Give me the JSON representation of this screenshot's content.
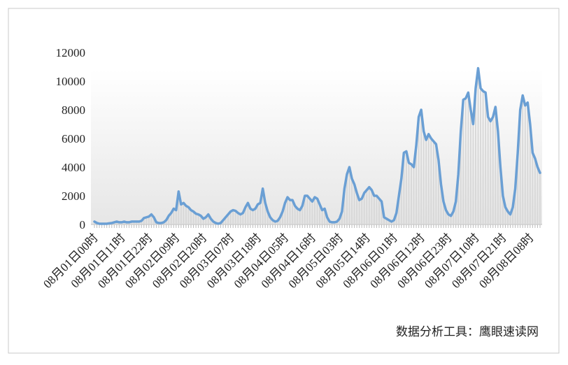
{
  "chart_data": {
    "type": "line",
    "categories": [
      "08月01日00时",
      null,
      null,
      null,
      null,
      null,
      null,
      null,
      null,
      null,
      null,
      "08月01日11时",
      null,
      null,
      null,
      null,
      null,
      null,
      null,
      null,
      null,
      null,
      "08月01日22时",
      null,
      null,
      null,
      null,
      null,
      null,
      null,
      null,
      null,
      null,
      "08月02日09时",
      null,
      null,
      null,
      null,
      null,
      null,
      null,
      null,
      null,
      null,
      "08月02日20时",
      null,
      null,
      null,
      null,
      null,
      null,
      null,
      null,
      null,
      null,
      "08月03日07时",
      null,
      null,
      null,
      null,
      null,
      null,
      null,
      null,
      null,
      null,
      "08月03日18时",
      null,
      null,
      null,
      null,
      null,
      null,
      null,
      null,
      null,
      null,
      "08月04日05时",
      null,
      null,
      null,
      null,
      null,
      null,
      null,
      null,
      null,
      null,
      "08月04日16时",
      null,
      null,
      null,
      null,
      null,
      null,
      null,
      null,
      null,
      null,
      "08月05日03时",
      null,
      null,
      null,
      null,
      null,
      null,
      null,
      null,
      null,
      null,
      "08月05日14时",
      null,
      null,
      null,
      null,
      null,
      null,
      null,
      null,
      null,
      null,
      "08月06日01时",
      null,
      null,
      null,
      null,
      null,
      null,
      null,
      null,
      null,
      null,
      "08月06日12时",
      null,
      null,
      null,
      null,
      null,
      null,
      null,
      null,
      null,
      null,
      "08月06日23时",
      null,
      null,
      null,
      null,
      null,
      null,
      null,
      null,
      null,
      null,
      "08月07日10时",
      null,
      null,
      null,
      null,
      null,
      null,
      null,
      null,
      null,
      null,
      "08月07日21时",
      null,
      null,
      null,
      null,
      null,
      null,
      null,
      null,
      null,
      null,
      "08月08日08时",
      null,
      null,
      null,
      null
    ],
    "series": [
      {
        "color": "#6a9fd4",
        "values": [
          200,
          100,
          50,
          50,
          50,
          50,
          80,
          100,
          150,
          200,
          150,
          150,
          200,
          150,
          150,
          200,
          200,
          200,
          200,
          250,
          450,
          500,
          550,
          700,
          500,
          150,
          100,
          100,
          150,
          300,
          600,
          800,
          1100,
          1000,
          2300,
          1400,
          1500,
          1300,
          1200,
          1000,
          900,
          750,
          700,
          600,
          400,
          500,
          700,
          400,
          200,
          100,
          50,
          100,
          300,
          500,
          700,
          900,
          1000,
          950,
          800,
          700,
          800,
          1200,
          1500,
          1100,
          1000,
          1100,
          1400,
          1500,
          2500,
          1500,
          900,
          500,
          300,
          200,
          250,
          500,
          900,
          1500,
          1900,
          1700,
          1700,
          1300,
          1100,
          1000,
          1300,
          2000,
          2000,
          1800,
          1600,
          1900,
          1800,
          1400,
          1000,
          1100,
          500,
          200,
          150,
          150,
          200,
          400,
          900,
          2500,
          3500,
          4000,
          3200,
          2800,
          2200,
          1700,
          1800,
          2200,
          2400,
          2600,
          2400,
          2000,
          2000,
          1800,
          1600,
          500,
          400,
          300,
          200,
          300,
          800,
          2000,
          3200,
          5000,
          5100,
          4300,
          4200,
          4000,
          5500,
          7500,
          8000,
          6500,
          5900,
          6300,
          6000,
          5800,
          5600,
          4500,
          2800,
          1600,
          1000,
          700,
          600,
          900,
          1600,
          3500,
          6500,
          8700,
          8800,
          9200,
          8000,
          7000,
          9500,
          10900,
          9500,
          9300,
          9200,
          7500,
          7200,
          7500,
          8200,
          6500,
          4000,
          2000,
          1200,
          900,
          700,
          1200,
          2500,
          5000,
          8000,
          9000,
          8300,
          8500,
          7000,
          5000,
          4600,
          4000,
          3600
        ]
      }
    ],
    "ylim": [
      0,
      12000
    ],
    "yticks": [
      0,
      2000,
      4000,
      6000,
      8000,
      10000,
      12000
    ],
    "source": "数据分析工具：鹰眼速读网"
  }
}
